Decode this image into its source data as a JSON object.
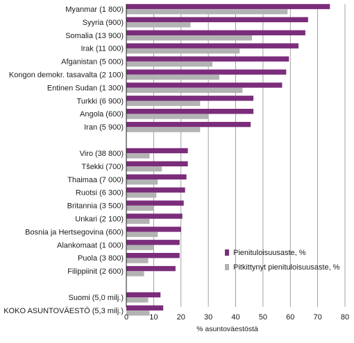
{
  "chart_data": {
    "type": "bar",
    "orientation": "horizontal",
    "title": "",
    "xlabel": "% asuntoväestöstä",
    "ylabel": "",
    "xlim": [
      0,
      80
    ],
    "xticks": [
      0,
      10,
      20,
      30,
      40,
      50,
      60,
      70,
      80
    ],
    "grid": true,
    "legend_position": "bottom-right",
    "groups": [
      {
        "categories": [
          "Myanmar (1 800)",
          "Syyria (900)",
          "Somalia (13 900)",
          "Irak (11 000)",
          "Afganistan (5 000)",
          "Kongon demokr. tasavalta (2 100)",
          "Entinen Sudan (1 300)",
          "Turkki (6 900)",
          "Angola (600)",
          "Iran (5 900)"
        ]
      },
      {
        "categories": [
          "Viro (38 800)",
          "Tšekki (700)",
          "Thaimaa (7 000)",
          "Ruotsi (6 300)",
          "Britannia (3 500)",
          "Unkari (2 100)",
          "Bosnia ja Hertsegovina (600)",
          "Alankomaat (1 000)",
          "Puola (3 800)",
          "Filippiinit (2 600)"
        ]
      },
      {
        "categories": [
          "Suomi (5,0 milj.)",
          "KOKO ASUNTOVÄESTÖ  (5,3 milj.)"
        ]
      }
    ],
    "series": [
      {
        "name": "Pienituloisuusaste, %",
        "color": "#7b2d7b",
        "values": [
          74.5,
          66.5,
          65.5,
          63,
          59.5,
          58.5,
          57,
          46.5,
          46.5,
          45.5,
          22.5,
          22.5,
          22,
          21.5,
          21,
          20.5,
          20,
          19.5,
          19.5,
          18,
          12.5,
          13.5
        ]
      },
      {
        "name": "Pitkittynyt pienituloisuusaste, %",
        "color": "#b3b3b3",
        "values": [
          59,
          23.5,
          46,
          41.5,
          31.5,
          34,
          42.5,
          27,
          30,
          27,
          8.5,
          13,
          11.5,
          11,
          10,
          8.5,
          11.5,
          10,
          8,
          6.5,
          8,
          8.5
        ]
      }
    ]
  }
}
